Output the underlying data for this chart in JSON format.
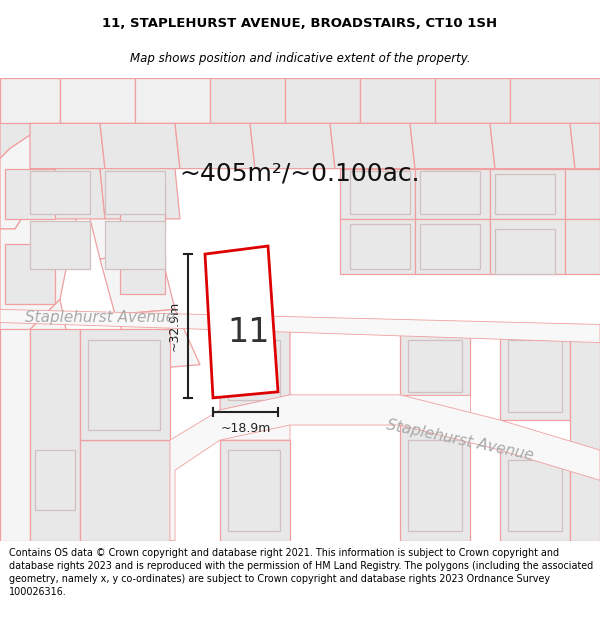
{
  "title_line1": "11, STAPLEHURST AVENUE, BROADSTAIRS, CT10 1SH",
  "title_line2": "Map shows position and indicative extent of the property.",
  "area_text": "~405m²/~0.100ac.",
  "number_label": "11",
  "dim_width": "~18.9m",
  "dim_height": "~32.9m",
  "street_label1": "Staplehurst Avenue",
  "street_label2": "Staplehurst Avenue",
  "footer_text": "Contains OS data © Crown copyright and database right 2021. This information is subject to Crown copyright and database rights 2023 and is reproduced with the permission of HM Land Registry. The polygons (including the associated geometry, namely x, y co-ordinates) are subject to Crown copyright and database rights 2023 Ordnance Survey 100026316.",
  "bg_color": "#ffffff",
  "parcel_face": "#e8e8e8",
  "parcel_edge": "#f0a0a0",
  "road_face": "#f5f0f0",
  "plot_face": "#ffffff",
  "plot_edge": "#dd0000",
  "dim_color": "#222222",
  "street_color": "#aaaaaa",
  "area_color": "#111111",
  "title_fs": 9.5,
  "subtitle_fs": 8.5,
  "area_fs": 18,
  "number_fs": 24,
  "street_fs": 11,
  "dim_fs": 9,
  "footer_fs": 6.9
}
